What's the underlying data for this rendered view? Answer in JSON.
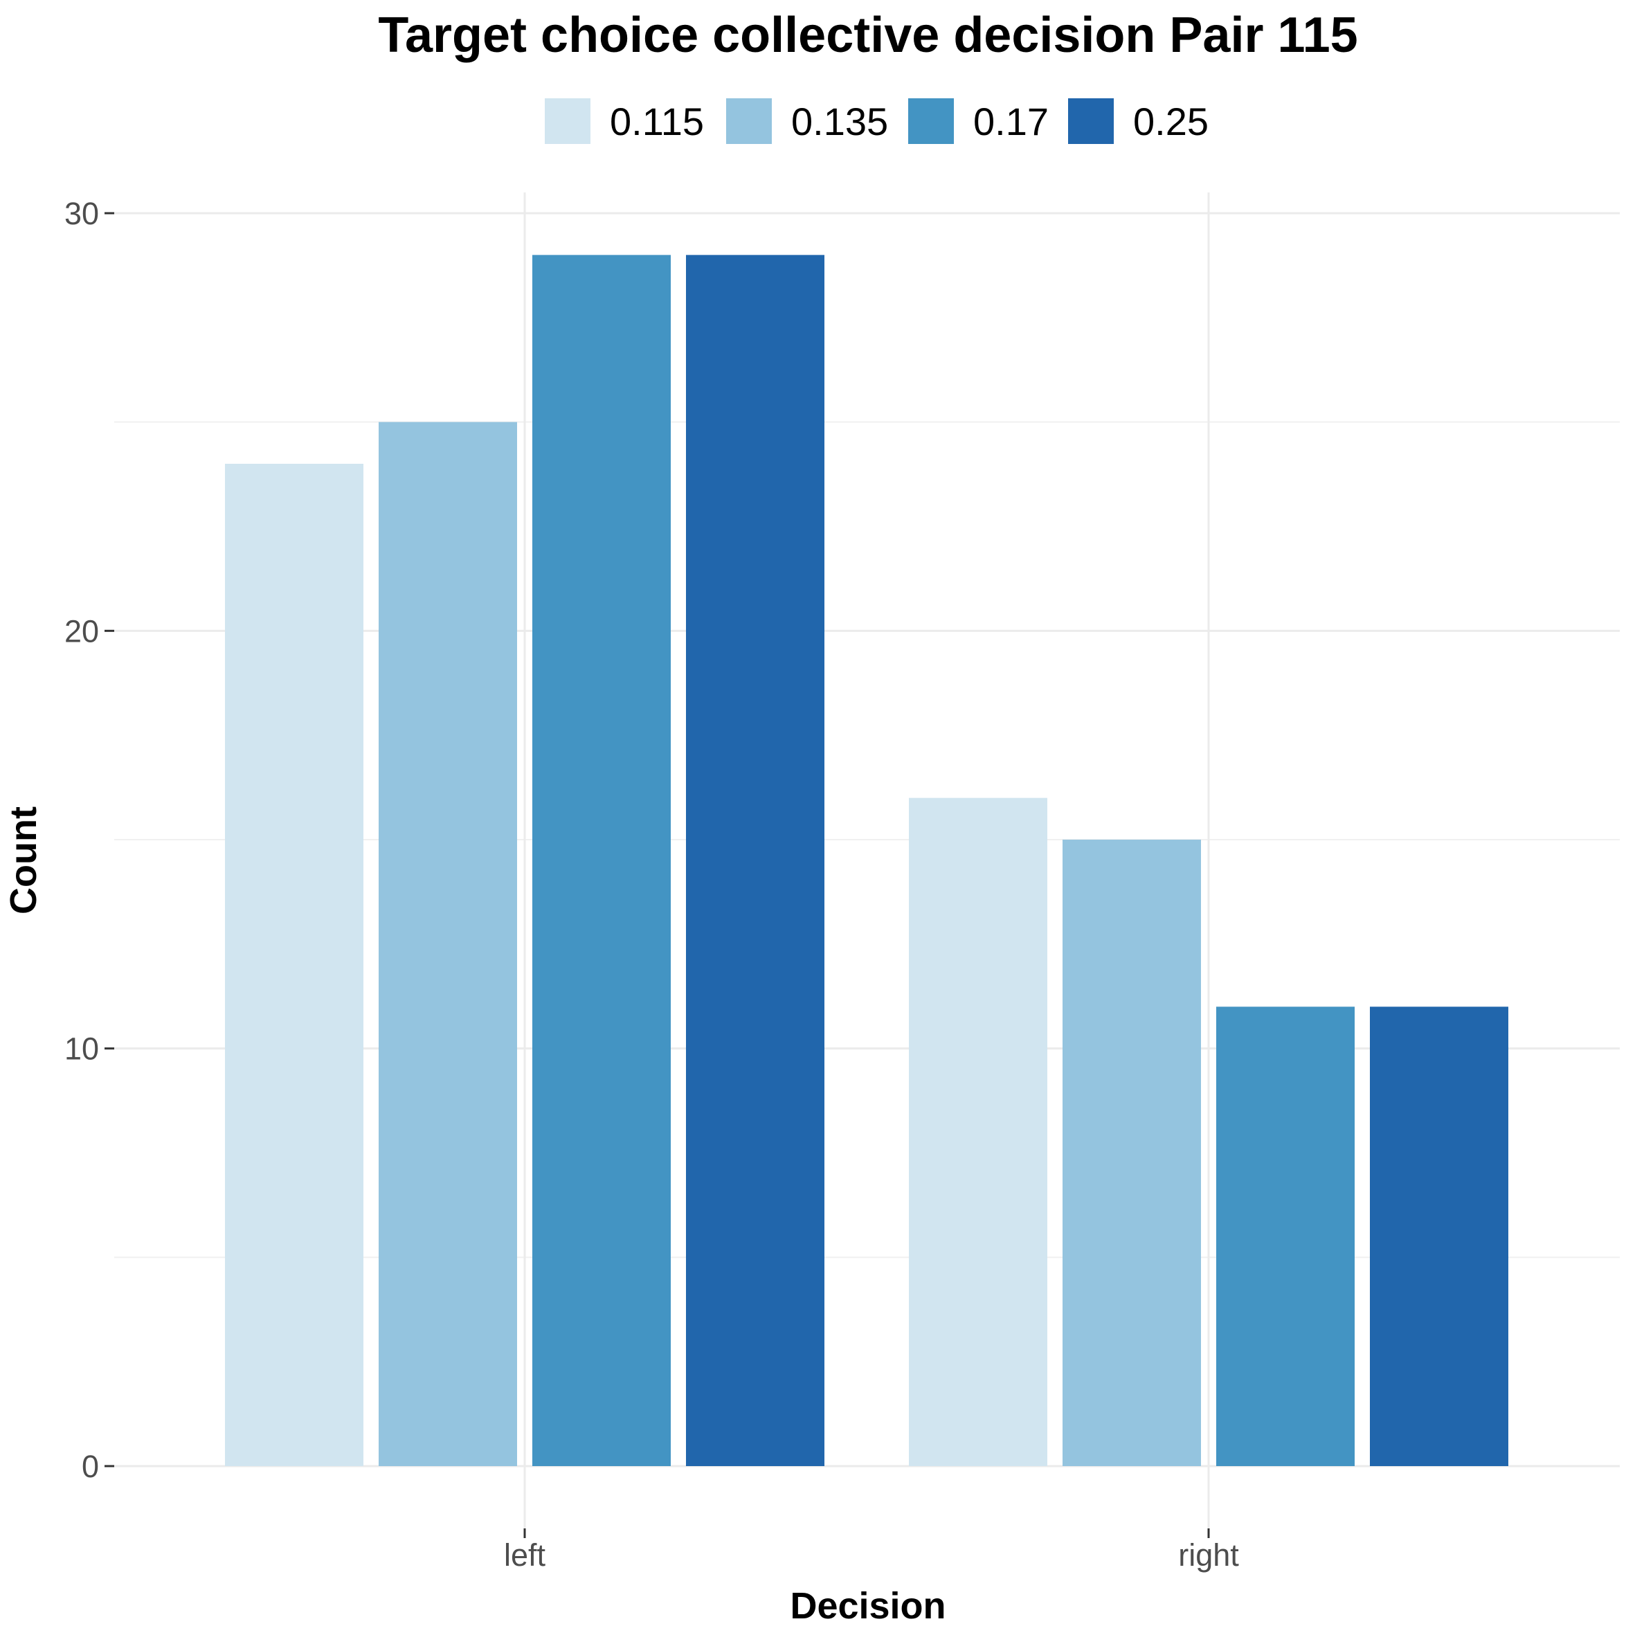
{
  "chart_data": {
    "type": "bar",
    "title": "Target choice collective decision Pair 115",
    "xlabel": "Decision",
    "ylabel": "Count",
    "categories": [
      "left",
      "right"
    ],
    "series": [
      {
        "name": "0.115",
        "color": "#d1e5f0",
        "values": [
          24,
          16
        ]
      },
      {
        "name": "0.135",
        "color": "#94c4df",
        "values": [
          25,
          15
        ]
      },
      {
        "name": "0.17",
        "color": "#4394c3",
        "values": [
          29,
          11
        ]
      },
      {
        "name": "0.25",
        "color": "#2166ac",
        "values": [
          29,
          11
        ]
      }
    ],
    "ylim": [
      0,
      30
    ],
    "yticks": [
      0,
      10,
      20,
      30
    ],
    "grid": true,
    "legend_position": "top"
  }
}
